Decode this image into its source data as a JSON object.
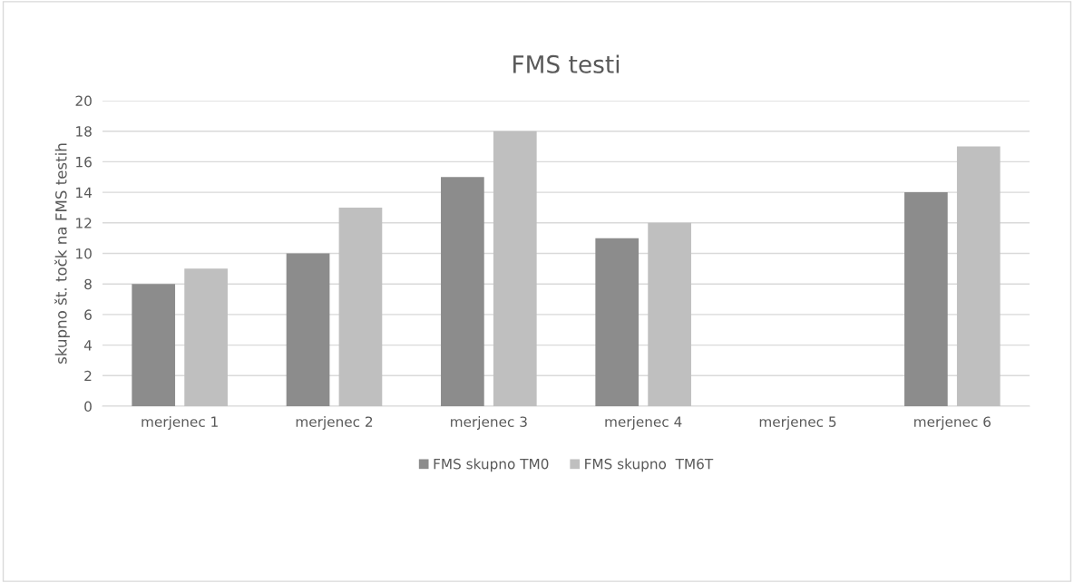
{
  "chart_data": {
    "type": "bar",
    "title": "FMS testi",
    "ylabel": "skupno št. točk na FMS testih",
    "categories": [
      "merjenec 1",
      "merjenec 2",
      "merjenec 3",
      "merjenec 4",
      "merjenec 5",
      "merjenec 6"
    ],
    "series": [
      {
        "name": "FMS skupno TM0",
        "color": "#8c8c8c",
        "values": [
          8,
          10,
          15,
          11,
          null,
          14
        ]
      },
      {
        "name": "FMS skupno  TM6T",
        "color": "#bfbfbf",
        "values": [
          9,
          13,
          18,
          12,
          null,
          17
        ]
      }
    ],
    "ylim": [
      0,
      20
    ],
    "yticks": [
      0,
      2,
      4,
      6,
      8,
      10,
      12,
      14,
      16,
      18,
      20
    ],
    "grid": "y",
    "legend": "bottom"
  }
}
